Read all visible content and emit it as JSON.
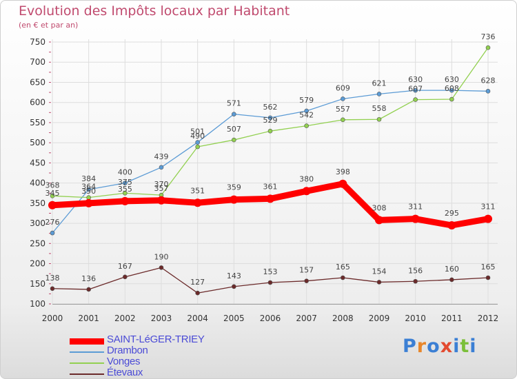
{
  "chart_data": {
    "type": "line",
    "title": "Evolution des Impôts locaux par Habitant",
    "subtitle": "(en € et par an)",
    "categories": [
      "2000",
      "2001",
      "2002",
      "2003",
      "2004",
      "2005",
      "2006",
      "2007",
      "2008",
      "2009",
      "2010",
      "2011",
      "2012"
    ],
    "ylim": [
      100,
      750
    ],
    "yticks": [
      100,
      150,
      200,
      250,
      300,
      350,
      400,
      450,
      500,
      550,
      600,
      650,
      700,
      750
    ],
    "grid": true,
    "legend_position": "bottom-left",
    "series": [
      {
        "name": "SAINT-LéGER-TRIEY",
        "color": "#ff0000",
        "values": [
          345,
          350,
          355,
          357,
          351,
          359,
          361,
          380,
          398,
          308,
          311,
          295,
          311
        ]
      },
      {
        "name": "Drambon",
        "color": "#5b9bd5",
        "values": [
          276,
          384,
          400,
          439,
          501,
          571,
          562,
          579,
          609,
          621,
          630,
          630,
          628
        ]
      },
      {
        "name": "Vonges",
        "color": "#92d050",
        "values": [
          368,
          364,
          375,
          370,
          490,
          507,
          529,
          542,
          557,
          558,
          607,
          608,
          736
        ]
      },
      {
        "name": "Étevaux",
        "color": "#6b2a2a",
        "values": [
          138,
          136,
          167,
          190,
          127,
          143,
          153,
          157,
          165,
          154,
          156,
          160,
          165
        ]
      }
    ]
  },
  "logo": {
    "letters": [
      "P",
      "r",
      "o",
      "x",
      "i",
      "t",
      "i"
    ]
  }
}
